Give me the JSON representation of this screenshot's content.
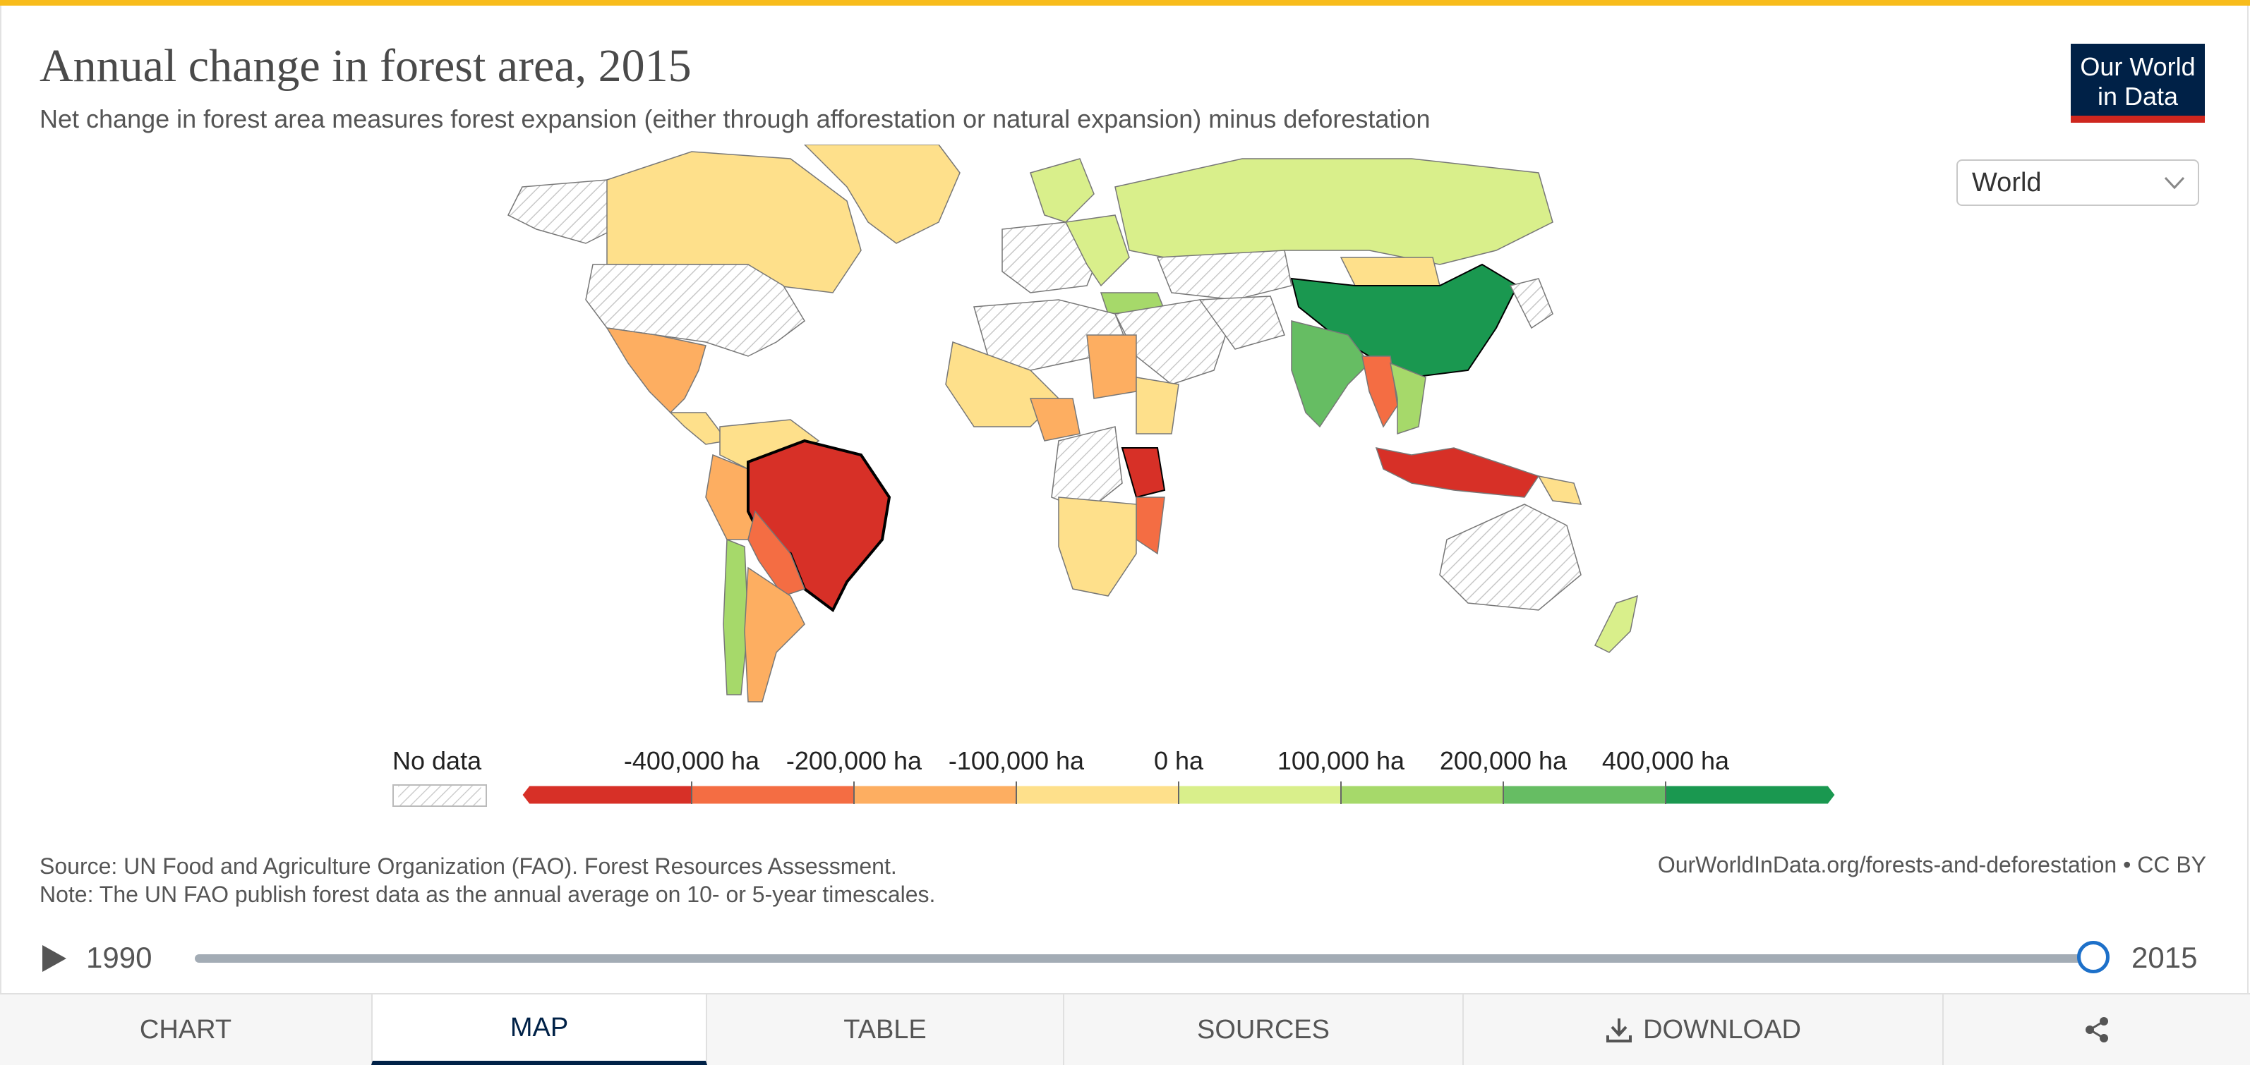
{
  "header": {
    "title": "Annual change in forest area, 2015",
    "subtitle": "Net change in forest area measures forest expansion (either through afforestation or natural expansion) minus deforestation",
    "logo_line1": "Our World",
    "logo_line2": "in Data"
  },
  "region_select": {
    "value": "World"
  },
  "map": {
    "projection": "world",
    "highlighted_countries": [
      "Brazil"
    ],
    "country_categories": [
      {
        "country": "Brazil",
        "bin": "below -400,000 ha"
      },
      {
        "country": "Indonesia",
        "bin": "below -400,000 ha"
      },
      {
        "country": "Tanzania",
        "bin": "below -400,000 ha"
      },
      {
        "country": "Myanmar",
        "bin": "-400,000 to -200,000 ha"
      },
      {
        "country": "Paraguay",
        "bin": "-400,000 to -200,000 ha"
      },
      {
        "country": "Bolivia",
        "bin": "-400,000 to -200,000 ha"
      },
      {
        "country": "Mozambique",
        "bin": "-400,000 to -200,000 ha"
      },
      {
        "country": "Argentina",
        "bin": "-200,000 to -100,000 ha"
      },
      {
        "country": "Mexico",
        "bin": "-200,000 to -100,000 ha"
      },
      {
        "country": "Peru",
        "bin": "-200,000 to -100,000 ha"
      },
      {
        "country": "Sudan",
        "bin": "-200,000 to -100,000 ha"
      },
      {
        "country": "Nigeria",
        "bin": "-200,000 to -100,000 ha"
      },
      {
        "country": "Zambia",
        "bin": "-200,000 to -100,000 ha"
      },
      {
        "country": "Zimbabwe",
        "bin": "-200,000 to -100,000 ha"
      },
      {
        "country": "Canada",
        "bin": "-100,000 to 0 ha"
      },
      {
        "country": "Greenland",
        "bin": "-100,000 to 0 ha"
      },
      {
        "country": "Kazakhstan",
        "bin": "-100,000 to 0 ha"
      },
      {
        "country": "Mongolia",
        "bin": "-100,000 to 0 ha"
      },
      {
        "country": "Mali",
        "bin": "-100,000 to 0 ha"
      },
      {
        "country": "Ethiopia",
        "bin": "-100,000 to 0 ha"
      },
      {
        "country": "South Africa",
        "bin": "-100,000 to 0 ha"
      },
      {
        "country": "Papua New Guinea",
        "bin": "-100,000 to 0 ha"
      },
      {
        "country": "Colombia",
        "bin": "-100,000 to 0 ha"
      },
      {
        "country": "Russia",
        "bin": "0 to 100,000 ha"
      },
      {
        "country": "New Zealand",
        "bin": "0 to 100,000 ha"
      },
      {
        "country": "Chile",
        "bin": "100,000 to 200,000 ha"
      },
      {
        "country": "Turkey",
        "bin": "100,000 to 200,000 ha"
      },
      {
        "country": "India",
        "bin": "200,000 to 400,000 ha"
      },
      {
        "country": "China",
        "bin": "above 400,000 ha"
      },
      {
        "country": "United States",
        "bin": "No data"
      },
      {
        "country": "Australia",
        "bin": "No data"
      },
      {
        "country": "Democratic Republic of the Congo",
        "bin": "No data"
      },
      {
        "country": "Algeria",
        "bin": "No data"
      },
      {
        "country": "Iran",
        "bin": "No data"
      }
    ]
  },
  "legend": {
    "no_data_label": "No data",
    "tick_labels": [
      "-400,000 ha",
      "-200,000 ha",
      "-100,000 ha",
      "0 ha",
      "100,000 ha",
      "200,000 ha",
      "400,000 ha"
    ],
    "bin_colors": [
      "#d73027",
      "#f46d43",
      "#fdae61",
      "#fee08b",
      "#d9ef8b",
      "#a6d96a",
      "#66bd63",
      "#1a9850"
    ]
  },
  "footer": {
    "source": "Source: UN Food and Agriculture Organization (FAO). Forest Resources Assessment.",
    "note": "Note: The UN FAO publish forest data as the annual average on 10- or 5-year timescales.",
    "url_license": "OurWorldInData.org/forests-and-deforestation • CC BY"
  },
  "timeline": {
    "start_year": "1990",
    "end_year": "2015",
    "selected_year": 2015,
    "selected_fraction": 1.0
  },
  "tabs": [
    {
      "label": "CHART",
      "active": false
    },
    {
      "label": "MAP",
      "active": true
    },
    {
      "label": "TABLE",
      "active": false
    },
    {
      "label": "SOURCES",
      "active": false
    },
    {
      "label": "DOWNLOAD",
      "active": false
    },
    {
      "label": "",
      "active": false
    }
  ],
  "colors": {
    "accent_top_bar": "#f8bc1b",
    "logo_background": "#002147",
    "logo_underline": "#ce261e",
    "timeline_handle": "#1d70c9",
    "no_data_hatch": "#cccccc"
  }
}
